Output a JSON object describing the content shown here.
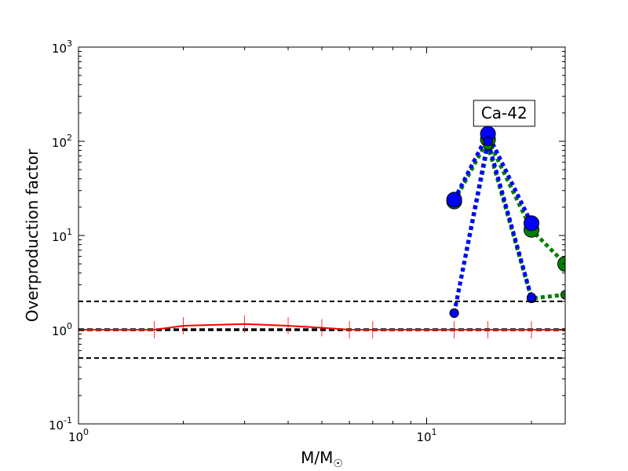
{
  "chart_data": {
    "type": "line",
    "title": "",
    "xlabel": "M/M",
    "xlabel_sub": "☉",
    "ylabel": "Overproduction factor",
    "xscale": "log",
    "yscale": "log",
    "xlim": [
      1,
      25
    ],
    "ylim": [
      0.1,
      1000
    ],
    "grid": false,
    "legend": "none",
    "x_ticks": [
      {
        "value": 1,
        "base": "10",
        "exp": "0"
      },
      {
        "value": 10,
        "base": "10",
        "exp": "1"
      }
    ],
    "y_ticks": [
      {
        "value": 0.1,
        "base": "10",
        "exp": "-1"
      },
      {
        "value": 1,
        "base": "10",
        "exp": "0"
      },
      {
        "value": 10,
        "base": "10",
        "exp": "1"
      },
      {
        "value": 100,
        "base": "10",
        "exp": "2"
      },
      {
        "value": 1000,
        "base": "10",
        "exp": "3"
      }
    ],
    "annotation": {
      "text": "Ca-42",
      "x": 16.7,
      "y": 200
    },
    "reference_lines": [
      {
        "y": 2,
        "color": "#000000",
        "style": "dashed"
      },
      {
        "y": 1,
        "color": "#000000",
        "style": "dashed-bold"
      },
      {
        "y": 0.5,
        "color": "#000000",
        "style": "dashed"
      }
    ],
    "series": [
      {
        "color": "#ff0000",
        "style": "solid",
        "marker": "tick",
        "x": [
          1,
          1.65,
          2,
          3,
          4,
          5,
          6,
          7,
          12,
          15,
          20,
          25
        ],
        "y": [
          1.0,
          1.0,
          1.1,
          1.15,
          1.1,
          1.05,
          1.0,
          1.0,
          1.0,
          1.0,
          1.0,
          1.0
        ]
      },
      {
        "color": "#008000",
        "style": "dotted",
        "marker": "circle",
        "marker_size": "large",
        "x": [
          12,
          15,
          20,
          25
        ],
        "y": [
          23,
          105,
          11.5,
          5
        ]
      },
      {
        "color": "#008000",
        "style": "dotted",
        "marker": "circle",
        "marker_size": "small",
        "x": [
          12,
          15,
          20,
          25
        ],
        "y": [
          1.5,
          90,
          2.15,
          2.35
        ]
      },
      {
        "color": "#0000ff",
        "style": "dotted",
        "marker": "circle",
        "marker_size": "large",
        "x": [
          12,
          15,
          20
        ],
        "y": [
          24,
          120,
          13.5
        ]
      },
      {
        "color": "#0000ff",
        "style": "dotted",
        "marker": "circle",
        "marker_size": "small",
        "x": [
          12,
          15,
          20
        ],
        "y": [
          1.5,
          100,
          2.2
        ]
      }
    ]
  }
}
